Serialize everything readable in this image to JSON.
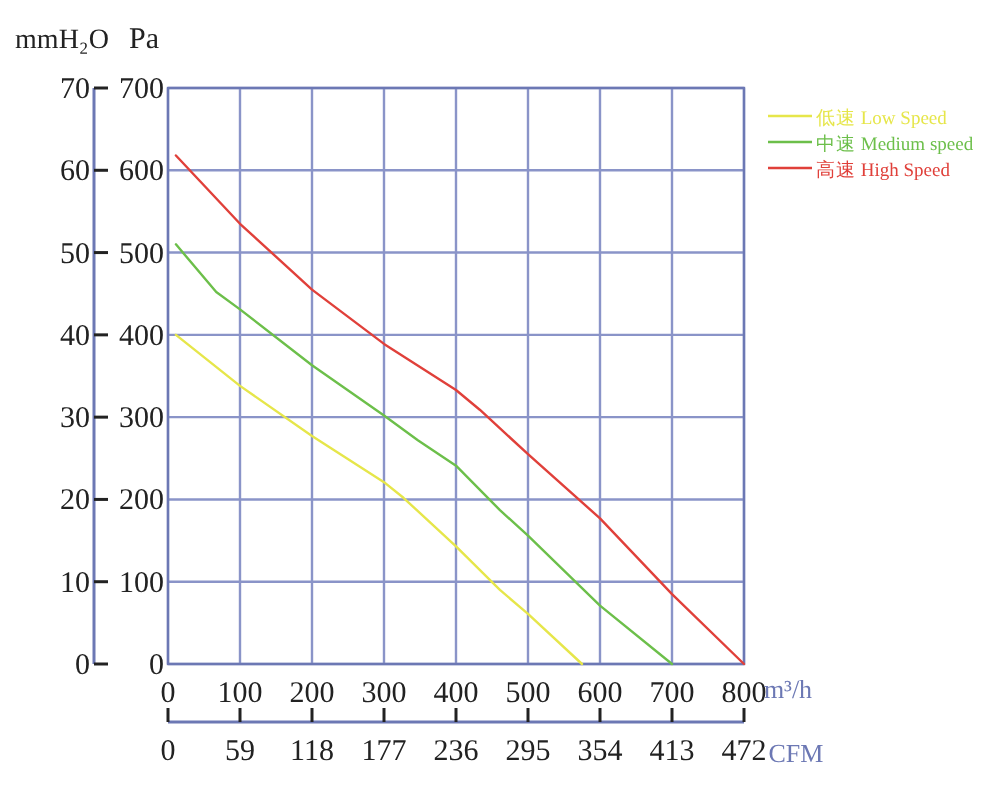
{
  "chart_data": {
    "type": "line",
    "xlabel": "m³/h",
    "x2label": "CFM",
    "ylabel": "Pa",
    "y2label": "mmH₂O",
    "xlim": [
      0,
      800
    ],
    "xticks": [
      0,
      100,
      200,
      300,
      400,
      500,
      600,
      700,
      800
    ],
    "x2lim": [
      0,
      472
    ],
    "x2ticks": [
      0,
      59,
      118,
      177,
      236,
      295,
      354,
      413,
      472
    ],
    "ylim": [
      0,
      700
    ],
    "yticks": [
      0,
      100,
      200,
      300,
      400,
      500,
      600,
      700
    ],
    "y2lim": [
      0,
      70
    ],
    "y2ticks": [
      0,
      10,
      20,
      30,
      40,
      50,
      60,
      70
    ],
    "grid": true,
    "legend": "top right",
    "line_style": "solid",
    "series": [
      {
        "name": "低速 Low Speed",
        "color": "#e6e64a",
        "x": [
          11,
          100,
          200,
          300,
          327,
          400,
          461,
          500,
          575
        ],
        "values": [
          400,
          338,
          277,
          221,
          202,
          143,
          90,
          61,
          0
        ]
      },
      {
        "name": "中速 Medium speed",
        "color": "#6cbf4a",
        "x": [
          11,
          67,
          100,
          200,
          300,
          347,
          400,
          461,
          500,
          600,
          700
        ],
        "values": [
          510,
          452,
          431,
          363,
          302,
          272,
          241,
          187,
          156,
          71,
          0
        ]
      },
      {
        "name": "高速 High Speed",
        "color": "#e0403a",
        "x": [
          11,
          100,
          200,
          300,
          400,
          433,
          500,
          600,
          700,
          800
        ],
        "values": [
          618,
          535,
          455,
          389,
          333,
          309,
          255,
          177,
          85,
          0
        ]
      }
    ]
  }
}
